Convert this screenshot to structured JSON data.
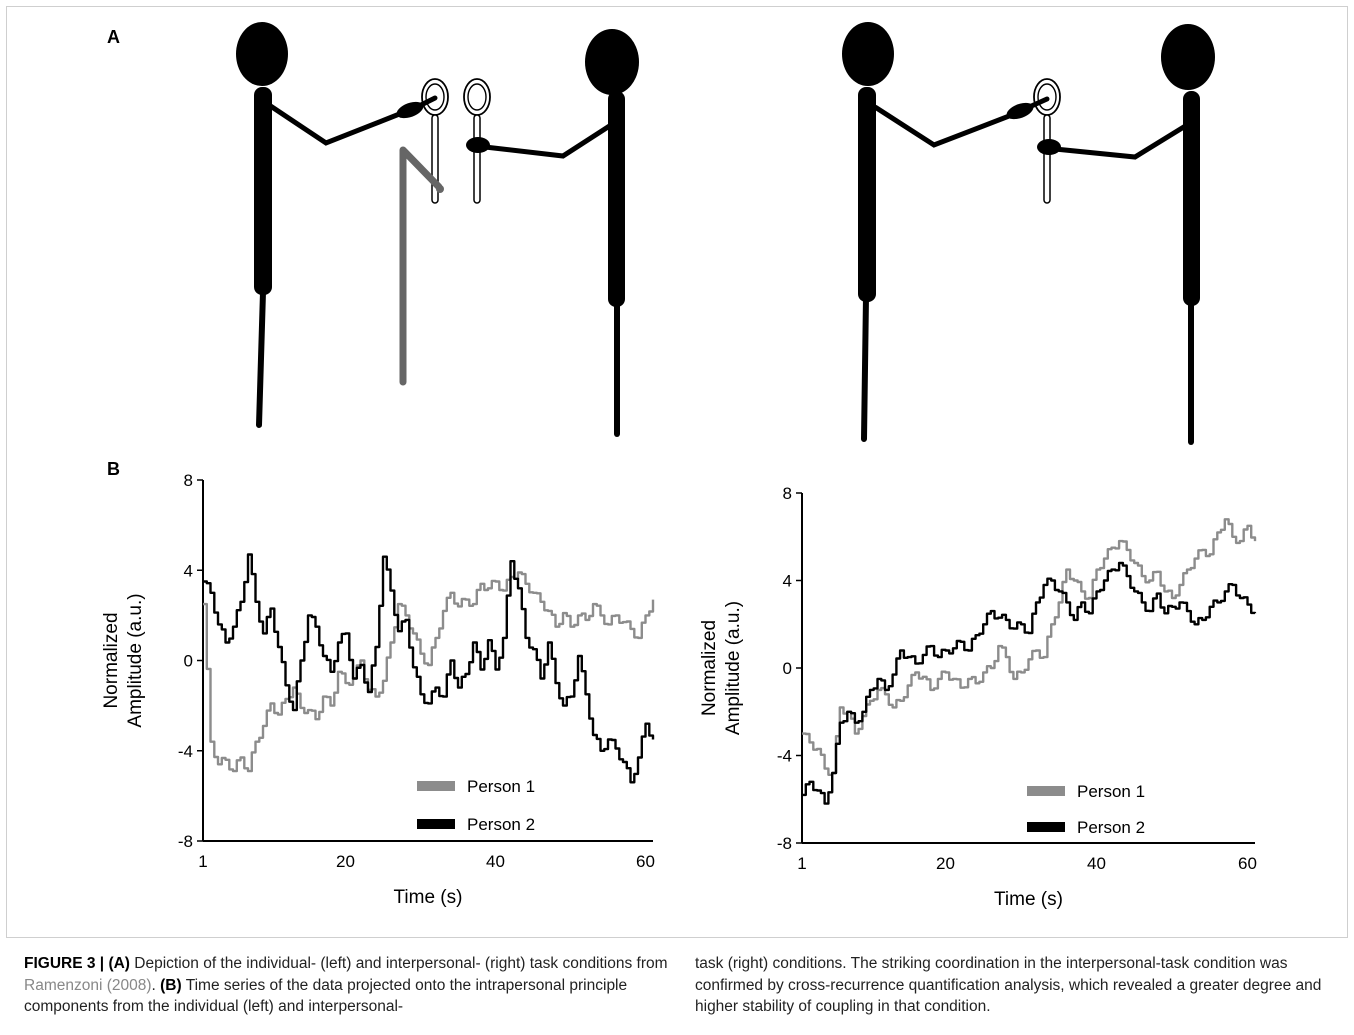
{
  "figure": {
    "panel_a_letter": "A",
    "panel_b_letter": "B"
  },
  "caption": {
    "label": "FIGURE 3 | ",
    "a_tag": "(A)",
    "a_text_1": " Depiction of the individual- (left) and interpersonal- (right) task conditions from ",
    "citation": "Ramenzoni (2008)",
    "a_text_2": ". ",
    "b_tag": "(B)",
    "b_text_1": " Time series of the data projected onto the intrapersonal principle components from the individual (left) and interpersonal-",
    "right_text": "task (right) conditions. The striking coordination in the interpersonal-task condition was confirmed by cross-recurrence quantification analysis, which revealed a greater degree and higher stability of coupling in that condition."
  },
  "colors": {
    "person1": "#8c8c8c",
    "person2": "#000000",
    "figure_stick": "#000000",
    "pole": "#666666"
  },
  "chart_data": [
    {
      "type": "line",
      "title": "",
      "xlabel": "Time  (s)",
      "ylabel": "Normalized Amplitude (a.u.)",
      "ylabel_lines": [
        "Normalized",
        "Amplitude (a.u.)"
      ],
      "xlim": [
        1,
        61
      ],
      "ylim": [
        -8,
        8
      ],
      "xticks": [
        1,
        20,
        40,
        60
      ],
      "yticks": [
        8,
        4,
        0,
        -4,
        -8
      ],
      "legend_position": "bottom-center",
      "series": [
        {
          "name": "Person 1",
          "color": "#8c8c8c",
          "x": [
            1,
            2,
            3,
            4,
            5,
            6,
            7,
            8,
            9,
            10,
            11,
            12,
            13,
            14,
            15,
            16,
            17,
            18,
            19,
            20,
            21,
            22,
            23,
            24,
            25,
            26,
            27,
            28,
            29,
            30,
            31,
            32,
            33,
            34,
            35,
            36,
            37,
            38,
            39,
            40,
            41,
            42,
            43,
            44,
            45,
            46,
            47,
            48,
            49,
            50,
            51,
            52,
            53,
            54,
            55,
            56,
            57,
            58,
            59,
            60,
            61
          ],
          "y": [
            2.5,
            -3.6,
            -4.6,
            -4.4,
            -4.9,
            -4.3,
            -4.9,
            -3.6,
            -2.9,
            -1.9,
            -2.4,
            -1.7,
            -1.2,
            -2.1,
            -2.2,
            -2.6,
            -1.6,
            -2.0,
            -0.5,
            -1.0,
            -0.8,
            0.0,
            -1.3,
            -1.6,
            -0.9,
            0.8,
            2.5,
            2.0,
            1.2,
            0.3,
            -0.2,
            1.0,
            2.2,
            3.0,
            2.4,
            2.7,
            2.5,
            3.4,
            3.2,
            3.5,
            3.1,
            3.7,
            3.9,
            3.4,
            3.0,
            2.6,
            2.2,
            1.5,
            2.1,
            1.5,
            2.0,
            1.8,
            2.5,
            2.0,
            1.6,
            2.0,
            1.7,
            1.4,
            1.0,
            2.0,
            2.7
          ]
        },
        {
          "name": "Person 2",
          "color": "#000000",
          "x": [
            1,
            2,
            3,
            4,
            5,
            6,
            7,
            8,
            9,
            10,
            11,
            12,
            13,
            14,
            15,
            16,
            17,
            18,
            19,
            20,
            21,
            22,
            23,
            24,
            25,
            26,
            27,
            28,
            29,
            30,
            31,
            32,
            33,
            34,
            35,
            36,
            37,
            38,
            39,
            40,
            41,
            42,
            43,
            44,
            45,
            46,
            47,
            48,
            49,
            50,
            51,
            52,
            53,
            54,
            55,
            56,
            57,
            58,
            59,
            60,
            61
          ],
          "y": [
            3.5,
            3.0,
            1.6,
            0.8,
            1.5,
            2.6,
            4.7,
            2.6,
            1.2,
            2.3,
            0.6,
            -1.1,
            -2.2,
            0.0,
            2.0,
            1.5,
            0.2,
            -0.5,
            0.8,
            1.2,
            -0.8,
            -0.2,
            -1.4,
            0.6,
            4.6,
            3.1,
            1.3,
            1.8,
            -0.3,
            -1.5,
            -1.9,
            -1.2,
            -1.6,
            0.0,
            -1.2,
            -0.6,
            0.8,
            -0.4,
            0.9,
            -0.4,
            1.0,
            4.4,
            3.2,
            1.0,
            0.5,
            -0.8,
            0.8,
            -1.0,
            -2.0,
            -1.6,
            0.2,
            -1.5,
            -3.3,
            -4.0,
            -3.5,
            -3.9,
            -4.5,
            -5.4,
            -4.3,
            -2.8,
            -3.5
          ]
        }
      ]
    },
    {
      "type": "line",
      "title": "",
      "xlabel": "Time  (s)",
      "ylabel": "Normalized Amplitude (a.u.)",
      "ylabel_lines": [
        "Normalized",
        "Amplitude (a.u.)"
      ],
      "xlim": [
        1,
        61
      ],
      "ylim": [
        -8,
        8
      ],
      "xticks": [
        1,
        20,
        40,
        60
      ],
      "yticks": [
        8,
        4,
        0,
        -4,
        -8
      ],
      "legend_position": "bottom-center",
      "series": [
        {
          "name": "Person 1",
          "color": "#8c8c8c",
          "x": [
            1,
            2,
            3,
            4,
            5,
            6,
            7,
            8,
            9,
            10,
            11,
            12,
            13,
            14,
            15,
            16,
            17,
            18,
            19,
            20,
            21,
            22,
            23,
            24,
            25,
            26,
            27,
            28,
            29,
            30,
            31,
            32,
            33,
            34,
            35,
            36,
            37,
            38,
            39,
            40,
            41,
            42,
            43,
            44,
            45,
            46,
            47,
            48,
            49,
            50,
            51,
            52,
            53,
            54,
            55,
            56,
            57,
            58,
            59,
            60,
            61
          ],
          "y": [
            -3.0,
            -3.4,
            -3.7,
            -4.6,
            -4.8,
            -1.8,
            -2.0,
            -3.0,
            -2.2,
            -1.5,
            -1.0,
            -1.2,
            -1.8,
            -1.5,
            -0.8,
            -0.2,
            -0.4,
            -1.0,
            -0.5,
            -0.2,
            -0.5,
            -0.9,
            -0.5,
            -0.7,
            -0.2,
            0.0,
            1.0,
            0.5,
            -0.5,
            -0.2,
            0.4,
            0.8,
            0.5,
            2.0,
            3.0,
            4.5,
            4.0,
            3.5,
            3.2,
            4.5,
            5.0,
            5.5,
            5.8,
            5.4,
            4.8,
            4.2,
            4.0,
            4.4,
            3.5,
            3.2,
            3.8,
            4.5,
            5.0,
            5.4,
            5.2,
            6.2,
            6.8,
            6.0,
            5.8,
            6.5,
            5.8
          ]
        },
        {
          "name": "Person 2",
          "color": "#000000",
          "x": [
            1,
            2,
            3,
            4,
            5,
            6,
            7,
            8,
            9,
            10,
            11,
            12,
            13,
            14,
            15,
            16,
            17,
            18,
            19,
            20,
            21,
            22,
            23,
            24,
            25,
            26,
            27,
            28,
            29,
            30,
            31,
            32,
            33,
            34,
            35,
            36,
            37,
            38,
            39,
            40,
            41,
            42,
            43,
            44,
            45,
            46,
            47,
            48,
            49,
            50,
            51,
            52,
            53,
            54,
            55,
            56,
            57,
            58,
            59,
            60,
            61
          ],
          "y": [
            -5.8,
            -5.2,
            -5.6,
            -6.2,
            -4.8,
            -2.5,
            -2.0,
            -2.5,
            -2.0,
            -1.0,
            -0.5,
            -1.0,
            -0.3,
            0.8,
            0.5,
            0.2,
            0.6,
            1.0,
            0.5,
            0.8,
            0.9,
            1.2,
            0.8,
            1.5,
            2.0,
            2.6,
            2.3,
            2.2,
            1.8,
            2.0,
            1.6,
            3.0,
            3.8,
            4.0,
            3.5,
            3.0,
            2.2,
            3.0,
            2.5,
            3.5,
            4.0,
            4.5,
            4.8,
            4.2,
            3.5,
            3.0,
            2.6,
            3.4,
            2.5,
            2.8,
            3.0,
            2.6,
            2.0,
            2.2,
            2.8,
            3.0,
            3.5,
            3.8,
            3.2,
            2.9,
            2.5
          ]
        }
      ]
    }
  ]
}
